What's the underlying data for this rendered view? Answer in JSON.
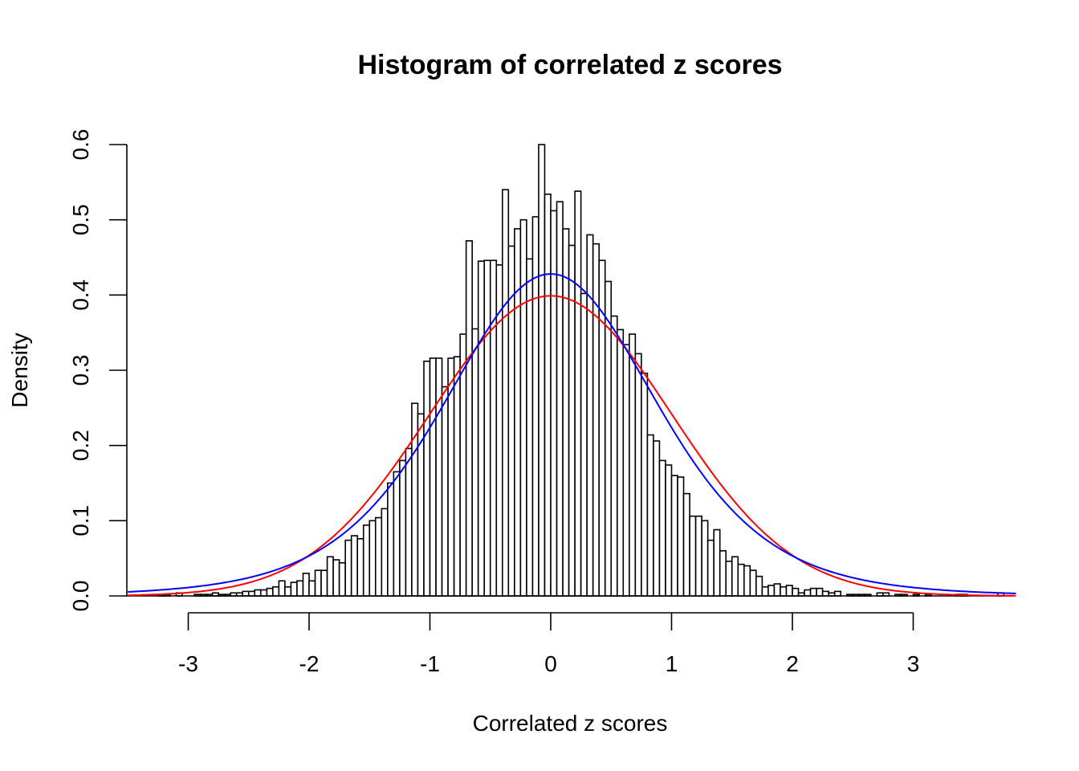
{
  "chart_data": {
    "type": "bar",
    "title": "Histogram of correlated z scores",
    "xlabel": "Correlated z scores",
    "ylabel": "Density",
    "xlim": [
      -3.5,
      3.85
    ],
    "ylim": [
      0,
      0.6
    ],
    "xticks": [
      "-3",
      "-2",
      "-1",
      "0",
      "1",
      "2",
      "3"
    ],
    "yticks": [
      "0.0",
      "0.1",
      "0.2",
      "0.3",
      "0.4",
      "0.5",
      "0.6"
    ],
    "bin_start": -3.25,
    "bin_width": 0.05,
    "densities": [
      0.002,
      0.002,
      0.0,
      0.004,
      0.0,
      0.0,
      0.002,
      0.002,
      0.002,
      0.004,
      0.002,
      0.002,
      0.004,
      0.004,
      0.006,
      0.006,
      0.008,
      0.008,
      0.01,
      0.012,
      0.02,
      0.012,
      0.018,
      0.02,
      0.03,
      0.02,
      0.034,
      0.034,
      0.052,
      0.048,
      0.044,
      0.074,
      0.08,
      0.076,
      0.094,
      0.1,
      0.104,
      0.116,
      0.15,
      0.165,
      0.18,
      0.196,
      0.256,
      0.242,
      0.312,
      0.316,
      0.316,
      0.278,
      0.316,
      0.318,
      0.348,
      0.472,
      0.355,
      0.445,
      0.446,
      0.446,
      0.44,
      0.54,
      0.465,
      0.488,
      0.5,
      0.448,
      0.504,
      0.6,
      0.534,
      0.512,
      0.524,
      0.488,
      0.466,
      0.538,
      0.402,
      0.48,
      0.468,
      0.446,
      0.418,
      0.372,
      0.354,
      0.334,
      0.348,
      0.322,
      0.296,
      0.214,
      0.206,
      0.18,
      0.174,
      0.16,
      0.158,
      0.136,
      0.106,
      0.106,
      0.1,
      0.074,
      0.088,
      0.06,
      0.046,
      0.052,
      0.042,
      0.04,
      0.034,
      0.026,
      0.012,
      0.014,
      0.016,
      0.012,
      0.014,
      0.01,
      0.004,
      0.008,
      0.01,
      0.01,
      0.006,
      0.004,
      0.006,
      0.0,
      0.002,
      0.002,
      0.002,
      0.002,
      0.0,
      0.004,
      0.004,
      0.0,
      0.002,
      0.002,
      0.0,
      0.002,
      0.0,
      0.002,
      0.0,
      0.0,
      0.0,
      0.0,
      0.002,
      0.002,
      0.0,
      0.0,
      0.0,
      0.0,
      0.0,
      0.004
    ],
    "series": [
      {
        "type": "line",
        "color": "#ff0000",
        "distribution": "normal",
        "mean": 0.0,
        "sd": 1.0
      },
      {
        "type": "line",
        "color": "#0000ff",
        "distribution": "t-like",
        "peak": 0.428,
        "scale": 0.905,
        "df": 6
      }
    ],
    "colors": {
      "bar_fill": "#ffffff",
      "bar_stroke": "#000000",
      "axis": "#000000"
    }
  }
}
